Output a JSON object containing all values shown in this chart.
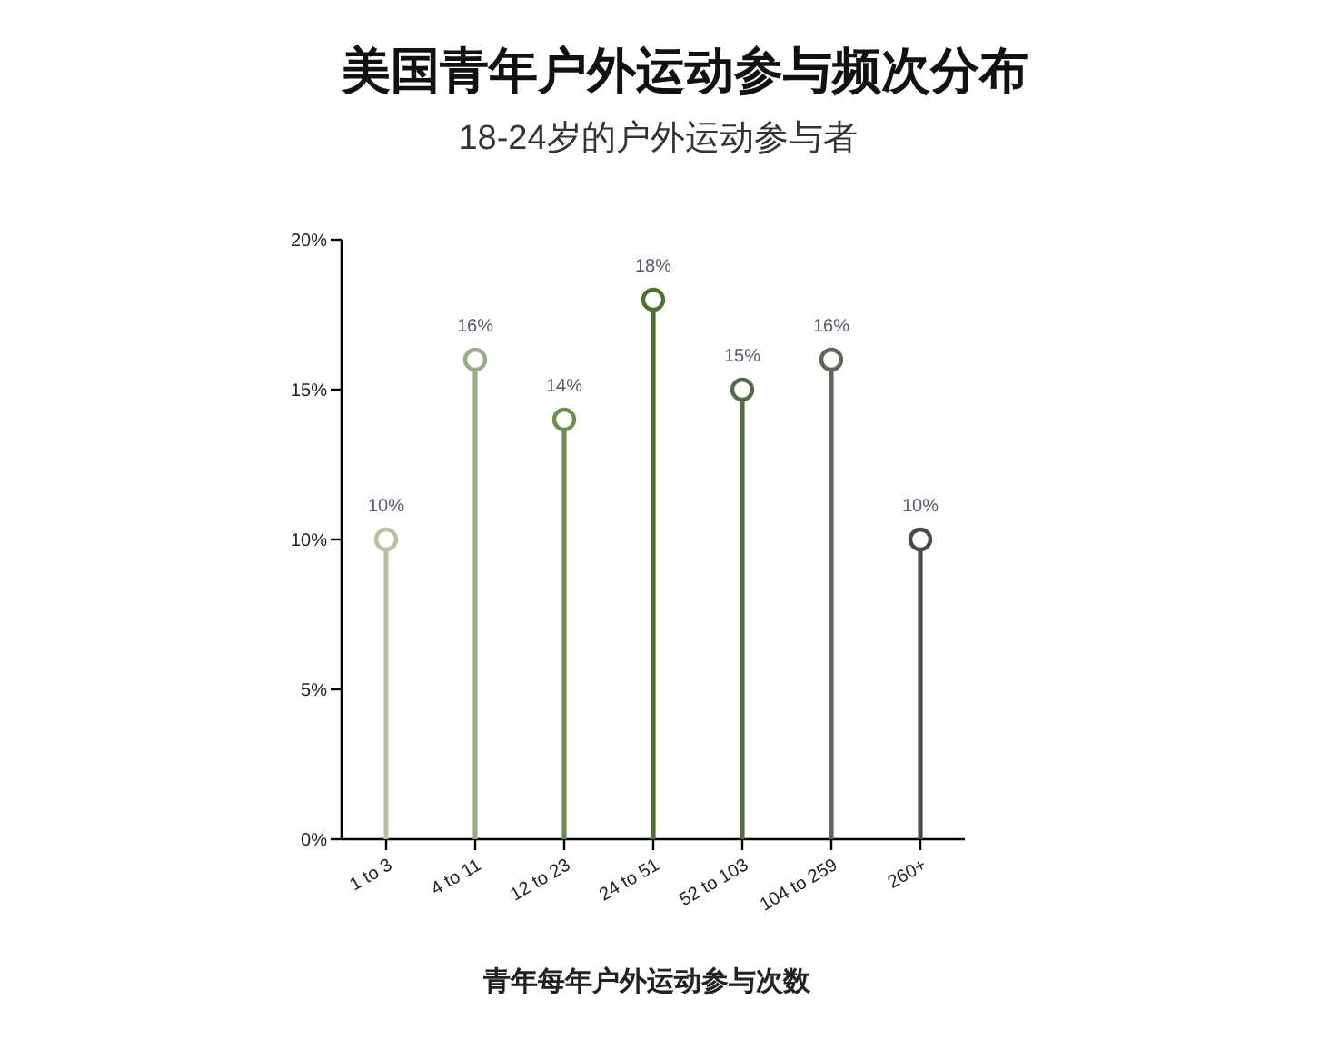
{
  "chart_data": {
    "type": "lollipop",
    "title": "美国青年户外运动参与频次分布",
    "subtitle": "18-24岁的户外运动参与者",
    "xlabel": "青年每年户外运动参与次数",
    "categories": [
      "1 to 3",
      "4 to 11",
      "12 to 23",
      "24 to 51",
      "52 to 103",
      "104 to 259",
      "260+"
    ],
    "values": [
      10,
      16,
      14,
      18,
      15,
      16,
      10
    ],
    "colors": [
      "#b7c2a4",
      "#9aab88",
      "#6f8f50",
      "#4f7035",
      "#56694a",
      "#5f665c",
      "#4a4a4a"
    ],
    "value_labels": [
      "10%",
      "16%",
      "14%",
      "18%",
      "15%",
      "16%",
      "10%"
    ],
    "ylim": [
      0,
      20
    ],
    "yticks": [
      {
        "value": 0,
        "label": "0%"
      },
      {
        "value": 5,
        "label": "5%"
      },
      {
        "value": 10,
        "label": "10%"
      },
      {
        "value": 15,
        "label": "15%"
      },
      {
        "value": 20,
        "label": "20%"
      }
    ],
    "marker": "circle"
  }
}
